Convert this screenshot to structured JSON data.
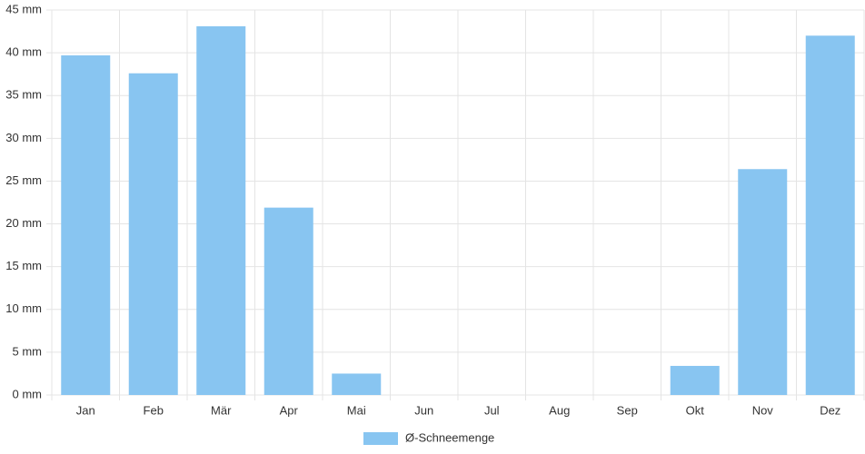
{
  "chart_data": {
    "type": "bar",
    "categories": [
      "Jan",
      "Feb",
      "Mär",
      "Apr",
      "Mai",
      "Jun",
      "Jul",
      "Aug",
      "Sep",
      "Okt",
      "Nov",
      "Dez"
    ],
    "series": [
      {
        "name": "Ø-Schneemenge",
        "color": "#88c5f1",
        "values": [
          39.7,
          37.6,
          43.1,
          21.9,
          2.5,
          0,
          0,
          0,
          0,
          3.4,
          26.4,
          42.0
        ]
      }
    ],
    "ylim": [
      0,
      45
    ],
    "yticks": [
      {
        "value": 0,
        "label": "0 mm"
      },
      {
        "value": 5,
        "label": "5 mm"
      },
      {
        "value": 10,
        "label": "10 mm"
      },
      {
        "value": 15,
        "label": "15 mm"
      },
      {
        "value": 20,
        "label": "20 mm"
      },
      {
        "value": 25,
        "label": "25 mm"
      },
      {
        "value": 30,
        "label": "30 mm"
      },
      {
        "value": 35,
        "label": "35 mm"
      },
      {
        "value": 40,
        "label": "40 mm"
      },
      {
        "value": 45,
        "label": "45 mm"
      }
    ],
    "grid": true,
    "legend": "bottom"
  }
}
